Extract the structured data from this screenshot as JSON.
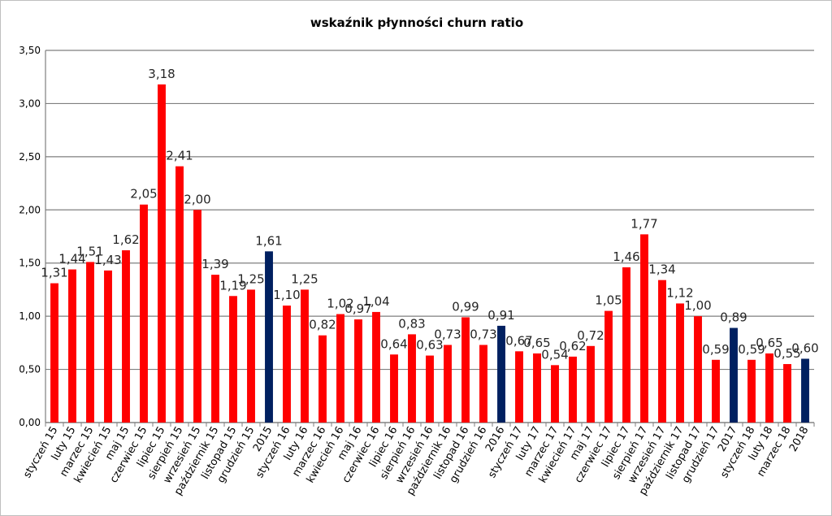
{
  "chart_data": {
    "type": "bar",
    "title": "wskaźnik płynności churn ratio",
    "xlabel": "",
    "ylabel": "",
    "ylim": [
      0,
      3.5
    ],
    "yticks": [
      "0,00",
      "0,50",
      "1,00",
      "1,50",
      "2,00",
      "2,50",
      "3,00",
      "3,50"
    ],
    "grid": true,
    "legend": "none",
    "colors": {
      "monthly": "#ff0000",
      "yearly": "#002060",
      "grid": "#7f7f7f",
      "axis": "#7f7f7f"
    },
    "categories": [
      "styczeń 15",
      "luty 15",
      "marzec 15",
      "kwiecień 15",
      "maj 15",
      "czerwiec 15",
      "lipiec 15",
      "sierpień 15",
      "wrzesień 15",
      "październik 15",
      "listopad 15",
      "grudzień 15",
      "2015",
      "styczeń 16",
      "luty 16",
      "marzec 16",
      "kwiecień 16",
      "maj 16",
      "czerwiec 16",
      "lipiec 16",
      "sierpień 16",
      "wrzesień 16",
      "październik 16",
      "listopad 16",
      "grudzień 16",
      "2016",
      "styczeń 17",
      "luty 17",
      "marzec 17",
      "kwiecień 17",
      "maj 17",
      "czerwiec 17",
      "lipiec 17",
      "sierpień 17",
      "wrzesień 17",
      "październik 17",
      "listopad 17",
      "grudzień 17",
      "2017",
      "styczeń 18",
      "luty 18",
      "marzec 18",
      "2018"
    ],
    "values": [
      1.31,
      1.44,
      1.51,
      1.43,
      1.62,
      2.05,
      3.18,
      2.41,
      2.0,
      1.39,
      1.19,
      1.25,
      1.61,
      1.1,
      1.25,
      0.82,
      1.02,
      0.97,
      1.04,
      0.64,
      0.83,
      0.63,
      0.73,
      0.99,
      0.73,
      0.91,
      0.67,
      0.65,
      0.54,
      0.62,
      0.72,
      1.05,
      1.46,
      1.77,
      1.34,
      1.12,
      1.0,
      0.59,
      0.89,
      0.59,
      0.65,
      0.55,
      0.6
    ],
    "value_labels": [
      "1,31",
      "1,44",
      "1,51",
      "1,43",
      "1,62",
      "2,05",
      "3,18",
      "2,41",
      "2,00",
      "1,39",
      "1,19",
      "1,25",
      "1,61",
      "1,10",
      "1,25",
      "0,82",
      "1,02",
      "0,97",
      "1,04",
      "0,64",
      "0,83",
      "0,63",
      "0,73",
      "0,99",
      "0,73",
      "0,91",
      "0,67",
      "0,65",
      "0,54",
      "0,62",
      "0,72",
      "1,05",
      "1,46",
      "1,77",
      "1,34",
      "1,12",
      "1,00",
      "0,59",
      "0,89",
      "0,59",
      "0,65",
      "0,55",
      "0,60"
    ],
    "bar_kind": [
      "m",
      "m",
      "m",
      "m",
      "m",
      "m",
      "m",
      "m",
      "m",
      "m",
      "m",
      "m",
      "y",
      "m",
      "m",
      "m",
      "m",
      "m",
      "m",
      "m",
      "m",
      "m",
      "m",
      "m",
      "m",
      "y",
      "m",
      "m",
      "m",
      "m",
      "m",
      "m",
      "m",
      "m",
      "m",
      "m",
      "m",
      "m",
      "y",
      "m",
      "m",
      "m",
      "y"
    ]
  }
}
